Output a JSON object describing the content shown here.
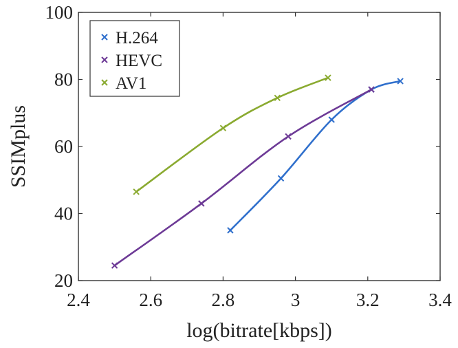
{
  "chart_data": {
    "type": "line",
    "title": "",
    "xlabel": "log(bitrate[kbps])",
    "ylabel": "SSIMplus",
    "xlim": [
      2.4,
      3.4
    ],
    "ylim": [
      20,
      100
    ],
    "xticks": [
      "2.4",
      "2.6",
      "2.8",
      "3",
      "3.2",
      "3.4"
    ],
    "yticks": [
      "20",
      "40",
      "60",
      "80",
      "100"
    ],
    "grid": false,
    "legend_position": "top-left",
    "series": [
      {
        "name": "H.264",
        "color": "#2f6fcc",
        "marker": "x",
        "x": [
          2.82,
          2.96,
          3.1,
          3.21,
          3.29
        ],
        "y": [
          35,
          50.5,
          68,
          77,
          79.5
        ]
      },
      {
        "name": "HEVC",
        "color": "#6d3a96",
        "marker": "x",
        "x": [
          2.5,
          2.74,
          2.98,
          3.21
        ],
        "y": [
          24.5,
          43,
          63,
          77
        ]
      },
      {
        "name": "AV1",
        "color": "#8aaa30",
        "marker": "x",
        "x": [
          2.56,
          2.8,
          2.95,
          3.09
        ],
        "y": [
          46.5,
          65.5,
          74.5,
          80.5
        ]
      }
    ]
  }
}
